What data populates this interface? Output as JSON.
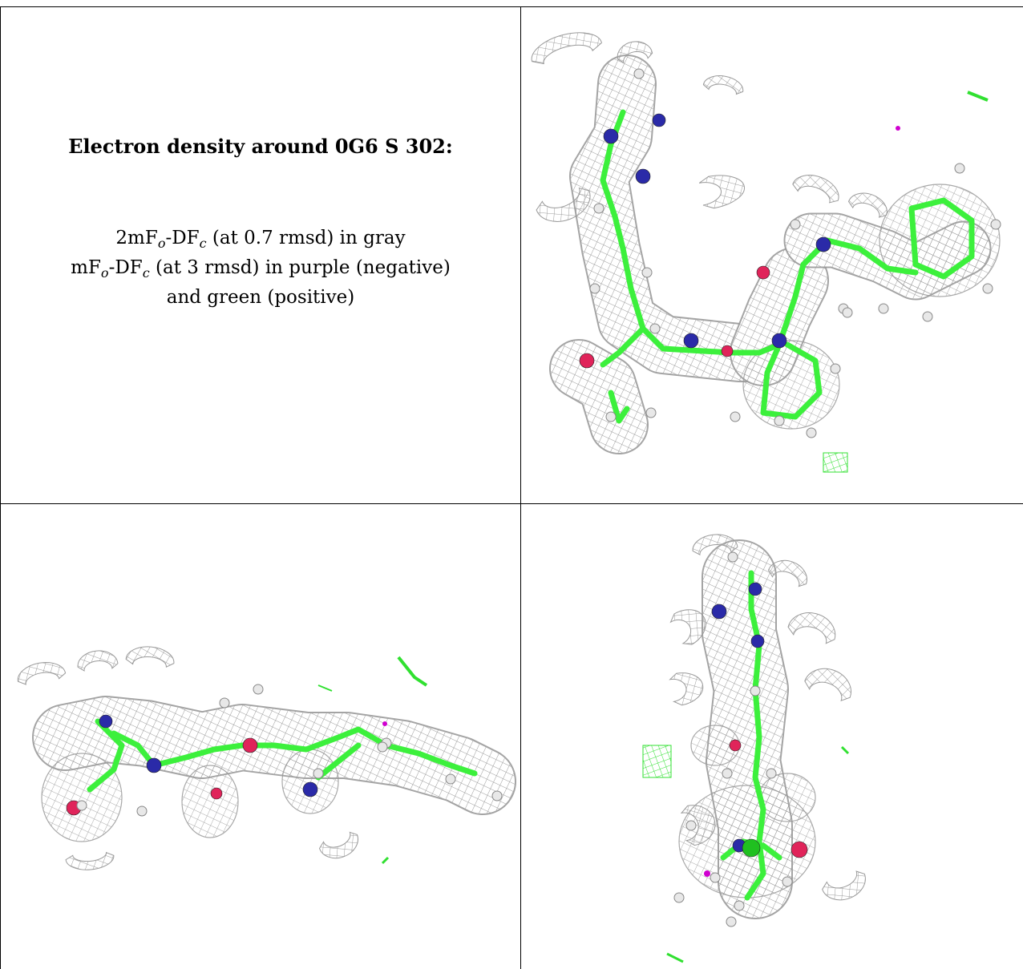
{
  "caption": {
    "title": "Electron density around 0G6 S 302:",
    "line1": {
      "a": "2mF",
      "sub1": "o",
      "b": "-DF",
      "sub2": "c",
      "c": " (at 0.7 rmsd) in gray"
    },
    "line2": {
      "a": "mF",
      "sub1": "o",
      "b": "-DF",
      "sub2": "c",
      "c": " (at 3 rmsd) in purple (negative)"
    },
    "line3": "and green (positive)"
  },
  "colors": {
    "mesh": "#9a9a9a",
    "carbon": "#3cf03c",
    "nitrogen": "#2a2aa8",
    "oxygen": "#e0245a",
    "hydrogen": "#e8e8e8",
    "negative": "#d000d0",
    "positive": "#30e030"
  },
  "panels": [
    {
      "name": "view-top-right"
    },
    {
      "name": "view-bottom-left"
    },
    {
      "name": "view-bottom-right"
    }
  ]
}
